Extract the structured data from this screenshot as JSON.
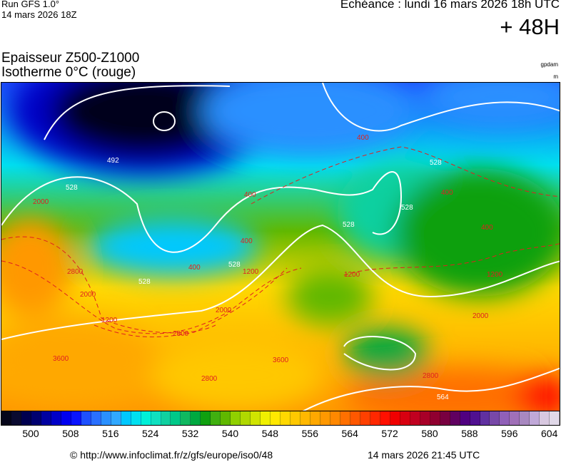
{
  "header": {
    "run": "Run GFS 1.0°",
    "run_date": "14 mars 2026 18Z",
    "valid": "Echéance : lundi 16 mars 2026 18h UTC",
    "lead": "+ 48H",
    "title_line1": "Epaisseur Z500-Z1000",
    "title_line2": "Isotherme 0°C (rouge)",
    "unit1": "gpdam",
    "unit2": "m"
  },
  "map": {
    "thickness_labels": [
      "492",
      "528",
      "528",
      "528",
      "528",
      "528",
      "528",
      "564"
    ],
    "iso0_labels": [
      "400",
      "400",
      "400",
      "400",
      "400",
      "400",
      "1200",
      "1200",
      "1200",
      "1200",
      "2000",
      "2000",
      "2000",
      "2000",
      "2800",
      "2800",
      "2800",
      "2800",
      "3600",
      "3600"
    ],
    "thickness_line_color": "#ffffff",
    "iso0_line_color": "#e02020"
  },
  "colorbar": {
    "ticks": [
      "500",
      "508",
      "516",
      "524",
      "532",
      "540",
      "548",
      "556",
      "564",
      "572",
      "580",
      "588",
      "596",
      "604"
    ],
    "colors": [
      "#05051a",
      "#0a0a30",
      "#00004f",
      "#000070",
      "#0000a0",
      "#0000c8",
      "#0000f0",
      "#0a14ff",
      "#1e50ff",
      "#2a70ff",
      "#2a90ff",
      "#30a8ff",
      "#00c8ff",
      "#00e0f0",
      "#00f0d8",
      "#10e0c0",
      "#10d0a0",
      "#00c888",
      "#10b860",
      "#00a840",
      "#10a010",
      "#40b010",
      "#60b800",
      "#90d000",
      "#b0d800",
      "#d0e400",
      "#f0f000",
      "#ffe800",
      "#ffd800",
      "#ffc800",
      "#ffb800",
      "#ffa800",
      "#ff9800",
      "#ff8800",
      "#ff7000",
      "#ff5800",
      "#ff4000",
      "#ff2800",
      "#ff1000",
      "#f00000",
      "#d80010",
      "#c00020",
      "#a80028",
      "#900030",
      "#780040",
      "#600060",
      "#500080",
      "#501090",
      "#6030a0",
      "#7848a8",
      "#9060b8",
      "#a070b8",
      "#a888c0",
      "#c0a8d8",
      "#d8c8e0",
      "#e0d8e8"
    ]
  },
  "footer": {
    "source": "© http://www.infoclimat.fr/z/gfs/europe/iso0/48",
    "generated": "14 mars 2026 21:45 UTC"
  }
}
